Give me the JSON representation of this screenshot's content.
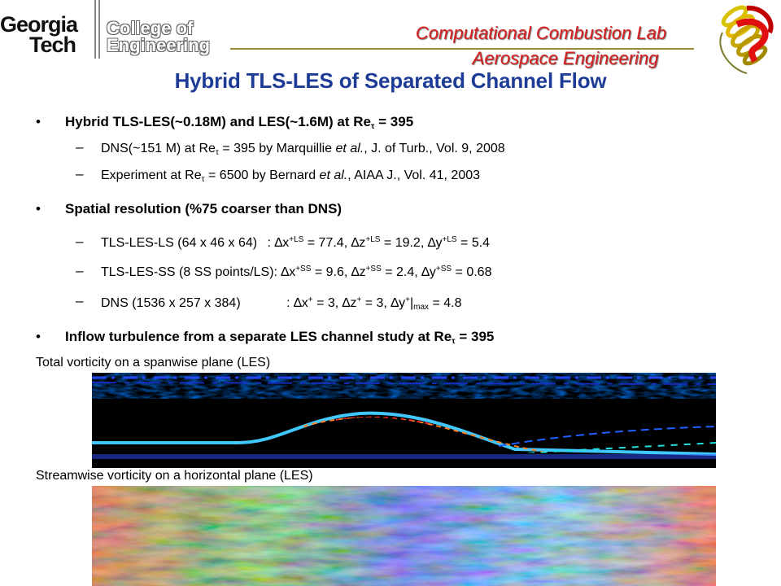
{
  "logo": {
    "gt_line1": "Georgia",
    "gt_line2": "Tech",
    "coe_line1": "College of",
    "coe_line2": "Engineering"
  },
  "lab": {
    "line1": "Computational Combustion Lab",
    "line2": "Aerospace Engineering"
  },
  "title": "Hybrid TLS-LES of Separated Channel Flow",
  "bullets": [
    {
      "text": "Hybrid TLS-LES(~0.18M) and LES(~1.6M) at Re",
      "sub": "τ",
      "tail": " = 395",
      "subs": [
        {
          "pre": "DNS(~151 M) at Re",
          "sub": "τ",
          "mid": " = 395 by Marquillie ",
          "ital": "et al.",
          "post": ", J. of Turb., Vol. 9, 2008"
        },
        {
          "pre": "Experiment at Re",
          "sub": "τ",
          "mid": " = 6500 by Bernard ",
          "ital": "et al.",
          "post": ", AIAA J., Vol. 41, 2003"
        }
      ]
    },
    {
      "text": "Spatial resolution (%75 coarser than DNS)",
      "res": [
        {
          "a": "TLS-LES-LS (64 x 46 x 64)",
          "c": ": ∆x",
          "s1": "+LS",
          "v1": " = 77.4, ∆z",
          "s2": "+LS",
          "v2": " = 19.2, ∆y",
          "s3": "+LS",
          "v3": " = 5.4"
        },
        {
          "a": "TLS-LES-SS (8 SS points/LS):",
          "c": " ∆x",
          "s1": "+SS",
          "v1": " = 9.6, ∆z",
          "s2": "+SS",
          "v2": " = 2.4, ∆y",
          "s3": "+SS",
          "v3": " = 0.68"
        },
        {
          "a": "DNS (1536 x 257 x 384)",
          "c": ": ∆x",
          "s1": "+",
          "v1": " = 3, ∆z",
          "s2": "+",
          "v2": " = 3, ∆y",
          "s3": "+",
          "v3a": "|",
          "sub3": "max",
          "v3": " = 4.8"
        }
      ]
    },
    {
      "text": "Inflow turbulence from a separate LES channel study at Re",
      "sub": "τ",
      "tail": " = 395"
    }
  ],
  "captions": {
    "fig1": "Total vorticity on a spanwise plane (LES)",
    "fig2": "Streamwise vorticity on a horizontal plane (LES)"
  },
  "icons": {
    "bullet": "•",
    "dash": "–"
  },
  "colors": {
    "title": "#1e3c96",
    "lab": "#d81f1f",
    "plot_bg": "#000000"
  }
}
